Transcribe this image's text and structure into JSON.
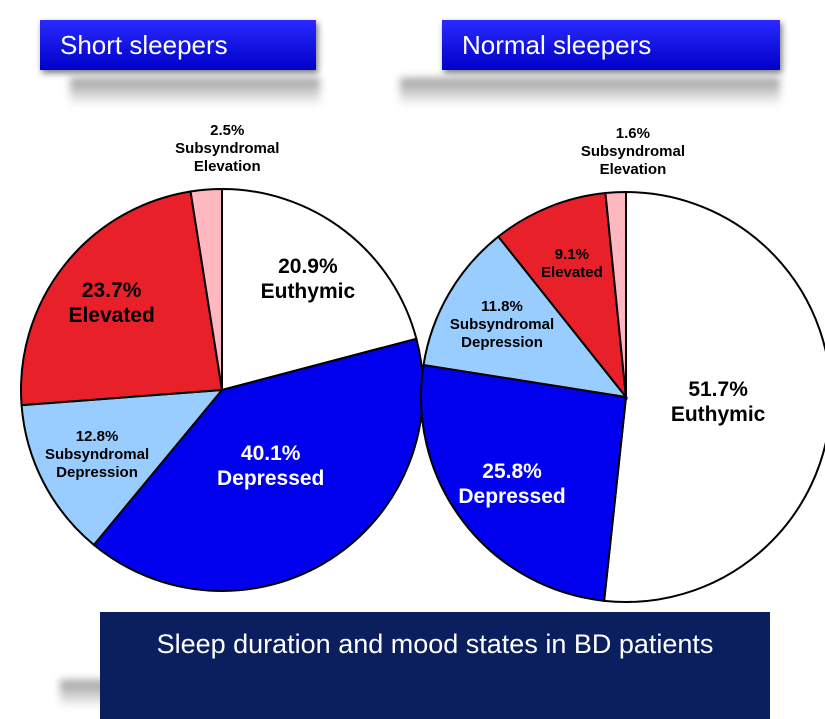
{
  "chart_data": [
    {
      "type": "pie",
      "title": "Short sleepers",
      "categories": [
        "Euthymic",
        "Depressed",
        "Subsyndromal Depression",
        "Elevated",
        "Subsyndromal Elevation"
      ],
      "values": [
        20.9,
        40.1,
        12.8,
        23.7,
        2.5
      ],
      "value_labels": [
        "20.9%",
        "40.1%",
        "12.8%",
        "23.7%",
        "2.5%"
      ],
      "colors": [
        "#ffffff",
        "#0000ee",
        "#99ccff",
        "#e8202a",
        "#ffb8c0"
      ]
    },
    {
      "type": "pie",
      "title": "Normal sleepers",
      "categories": [
        "Euthymic",
        "Depressed",
        "Subsyndromal Depression",
        "Elevated",
        "Subsyndromal Elevation"
      ],
      "values": [
        51.7,
        25.8,
        11.8,
        9.1,
        1.6
      ],
      "value_labels": [
        "51.7%",
        "25.8%",
        "11.8%",
        "9.1%",
        "1.6%"
      ],
      "colors": [
        "#ffffff",
        "#0000ee",
        "#99ccff",
        "#e8202a",
        "#ffb8c0"
      ]
    }
  ],
  "caption": "Sleep duration and mood states in BD patients"
}
